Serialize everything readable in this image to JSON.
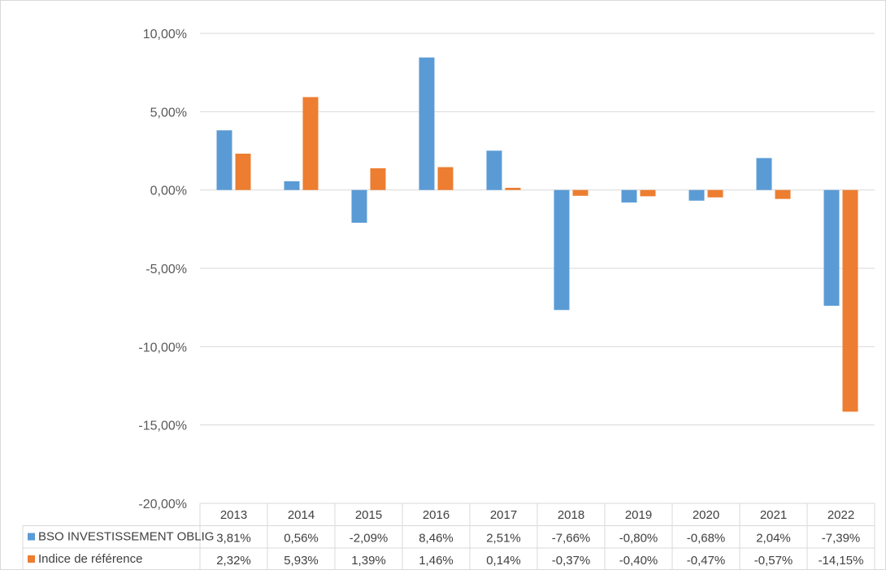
{
  "colors": {
    "series_1": "#5b9bd5",
    "series_2": "#ed7d31",
    "gridline": "#d9d9d9",
    "table_border": "#d9d9d9",
    "text": "#404040"
  },
  "chart_data": {
    "type": "bar",
    "title": "",
    "xlabel": "",
    "ylabel": "",
    "ylim": [
      -20,
      10
    ],
    "y_tick_step": 5,
    "y_tick_labels": [
      "10,00%",
      "5,00%",
      "0,00%",
      "-5,00%",
      "-10,00%",
      "-15,00%",
      "-20,00%"
    ],
    "grid": true,
    "legend_placement": "data-table",
    "categories": [
      "2013",
      "2014",
      "2015",
      "2016",
      "2017",
      "2018",
      "2019",
      "2020",
      "2021",
      "2022"
    ],
    "series": [
      {
        "name": "BSO INVESTISSEMENT OBLIG",
        "values": [
          3.81,
          0.56,
          -2.09,
          8.46,
          2.51,
          -7.66,
          -0.8,
          -0.68,
          2.04,
          -7.39
        ],
        "labels": [
          "3,81%",
          "0,56%",
          "-2,09%",
          "8,46%",
          "2,51%",
          "-7,66%",
          "-0,80%",
          "-0,68%",
          "2,04%",
          "-7,39%"
        ]
      },
      {
        "name": "Indice de référence",
        "values": [
          2.32,
          5.93,
          1.39,
          1.46,
          0.14,
          -0.37,
          -0.4,
          -0.47,
          -0.57,
          -14.15
        ],
        "labels": [
          "2,32%",
          "5,93%",
          "1,39%",
          "1,46%",
          "0,14%",
          "-0,37%",
          "-0,40%",
          "-0,47%",
          "-0,57%",
          "-14,15%"
        ]
      }
    ]
  }
}
